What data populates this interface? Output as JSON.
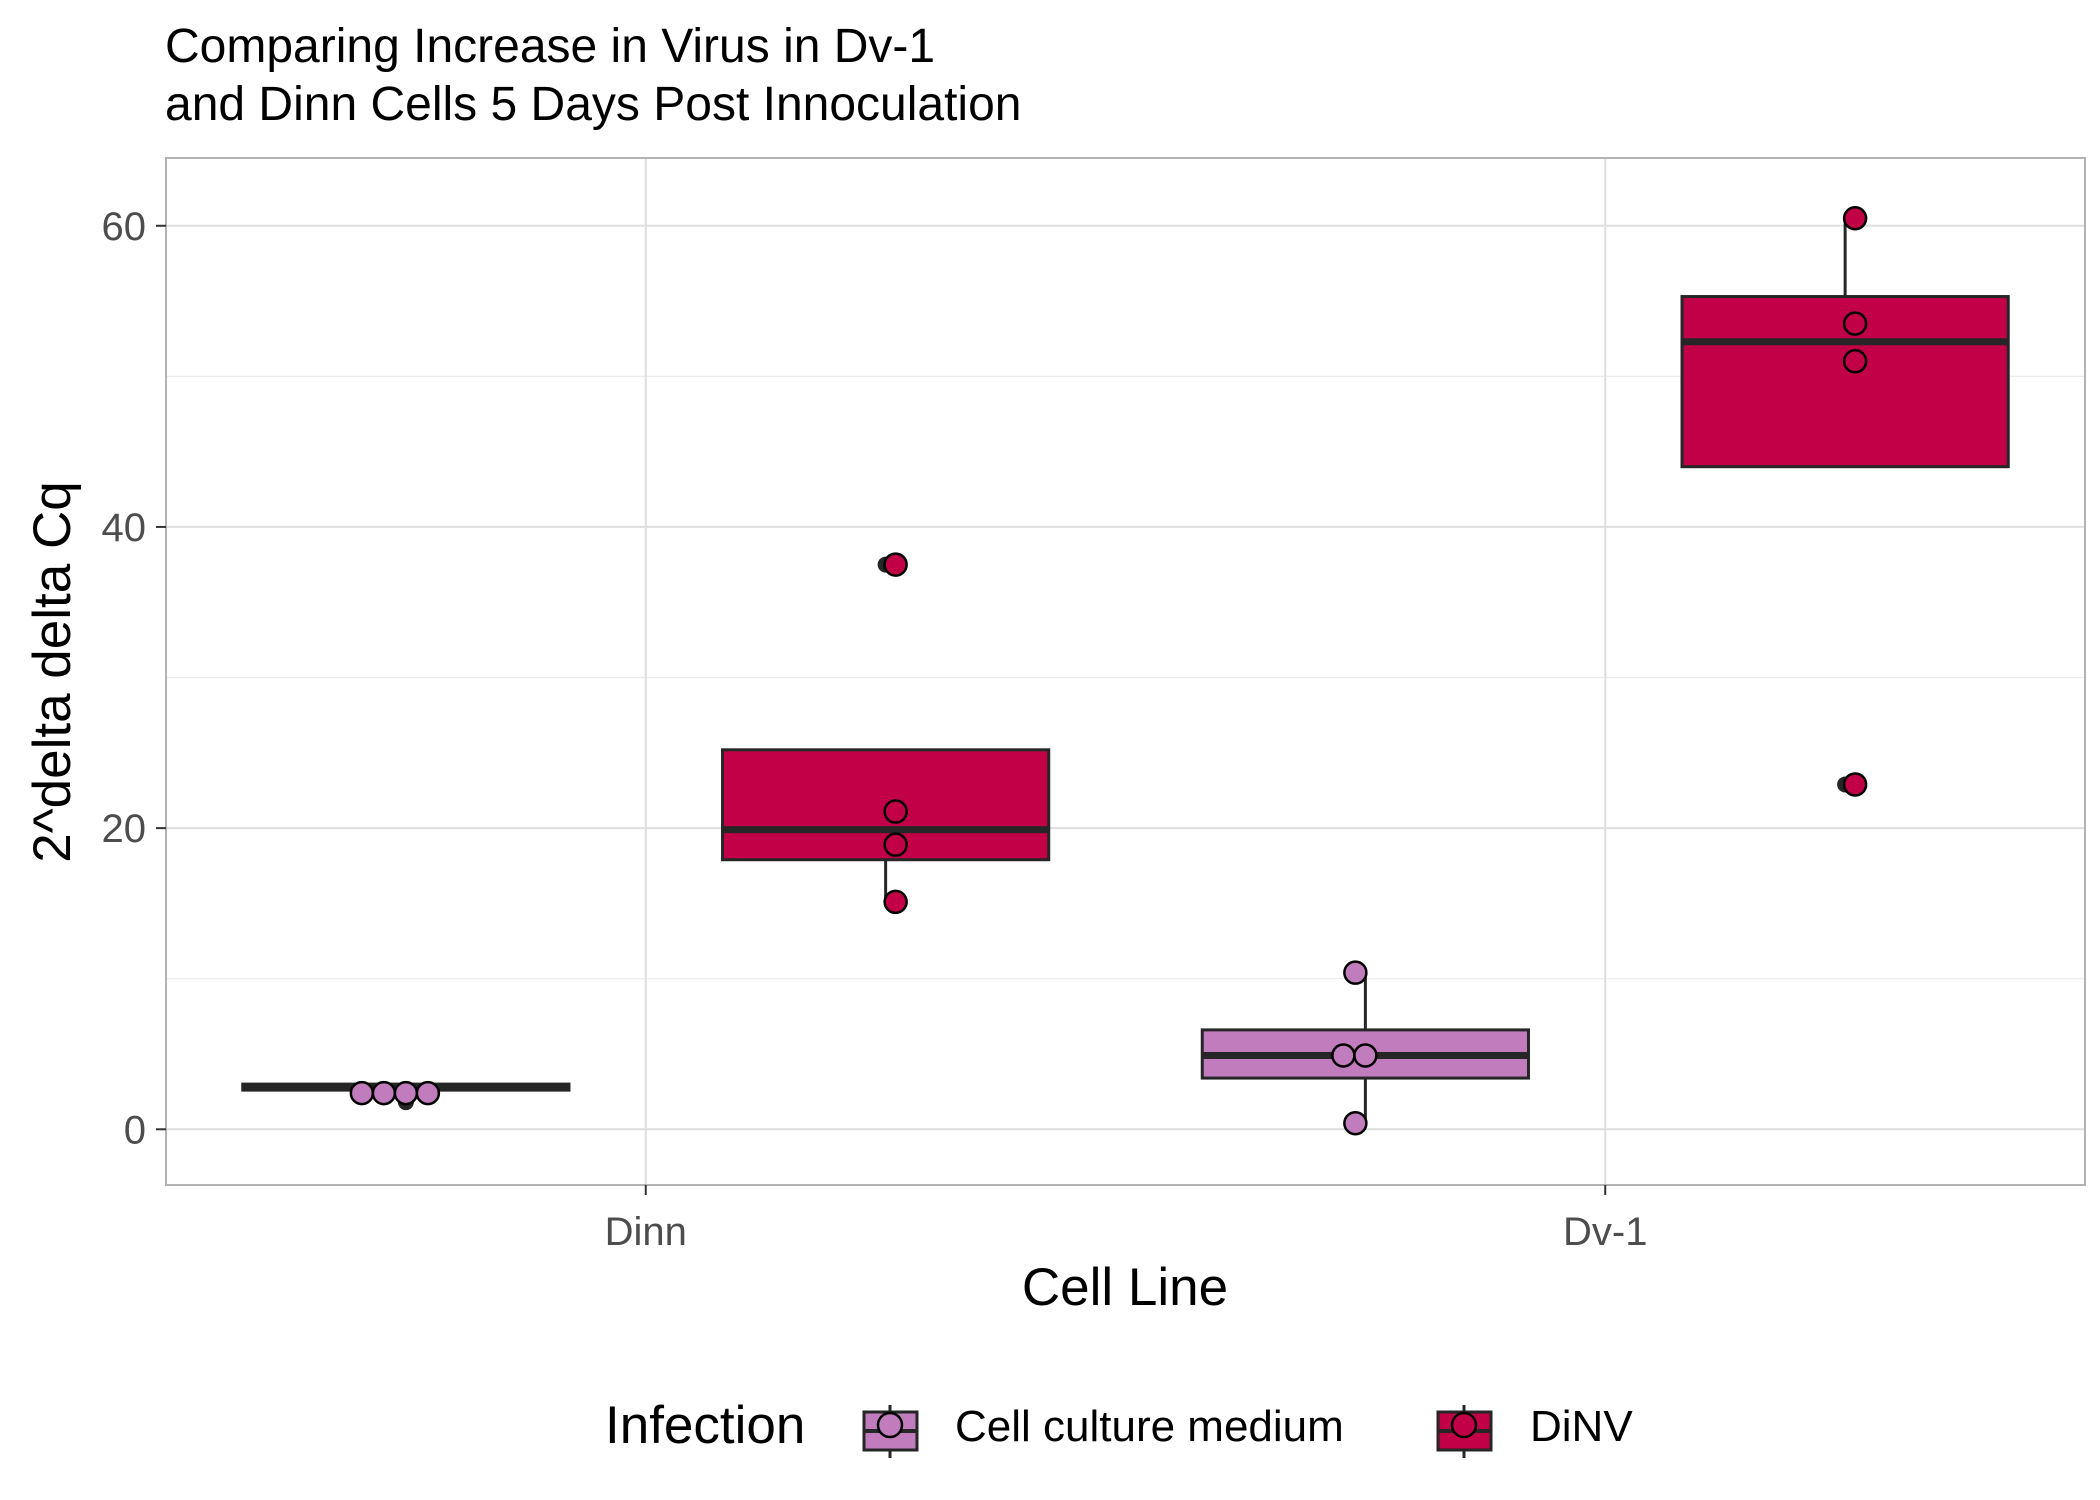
{
  "chart_data": {
    "type": "boxplot",
    "title": [
      "Comparing Increase in Virus in Dv-1",
      "and Dinn Cells 5 Days Post Innoculation"
    ],
    "xlabel": "Cell Line",
    "ylabel": "2^delta delta Cq",
    "categories": [
      "Dinn",
      "Dv-1"
    ],
    "ylim": [
      -3.7,
      64.5
    ],
    "yticks": [
      0,
      20,
      40,
      60
    ],
    "grid": true,
    "legend": {
      "title": "Infection",
      "position": "bottom"
    },
    "series": [
      {
        "name": "Cell culture medium",
        "color": "#C17CBE",
        "boxes": [
          {
            "category": "Dinn",
            "q1": 2.6,
            "median": 2.8,
            "q3": 3.0,
            "whisker_low": 2.6,
            "whisker_high": 3.0,
            "outliers": [
              1.8
            ],
            "points": [
              2.4,
              2.4,
              2.4,
              2.4
            ]
          },
          {
            "category": "Dv-1",
            "q1": 3.4,
            "median": 4.9,
            "q3": 6.6,
            "whisker_low": 0.4,
            "whisker_high": 10.4,
            "outliers": [],
            "points": [
              0.4,
              4.9,
              4.9,
              10.4
            ]
          }
        ]
      },
      {
        "name": "DiNV",
        "color": "#C10047",
        "boxes": [
          {
            "category": "Dinn",
            "q1": 17.9,
            "median": 19.9,
            "q3": 25.2,
            "whisker_low": 15.1,
            "whisker_high": 25.2,
            "outliers": [
              37.5
            ],
            "points": [
              15.1,
              18.9,
              21.1,
              37.5
            ]
          },
          {
            "category": "Dv-1",
            "q1": 44.0,
            "median": 52.3,
            "q3": 55.3,
            "whisker_low": 44.0,
            "whisker_high": 60.5,
            "outliers": [
              22.9
            ],
            "points": [
              22.9,
              51.0,
              53.5,
              60.5
            ]
          }
        ]
      }
    ]
  }
}
